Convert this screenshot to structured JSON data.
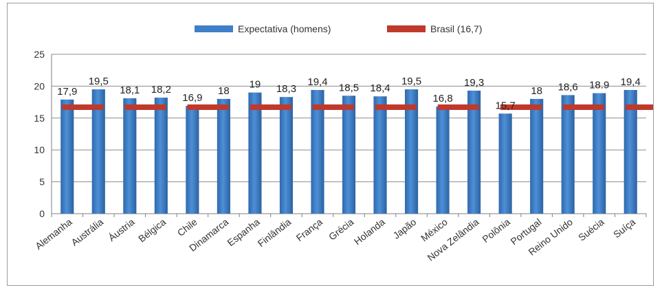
{
  "chart_data": {
    "type": "bar",
    "categories": [
      "Alemanha",
      "Austrália",
      "Áustria",
      "Bélgica",
      "Chile",
      "Dinamarca",
      "Espanha",
      "Finlândia",
      "França",
      "Grécia",
      "Holanda",
      "Japão",
      "México",
      "Nova Zelândia",
      "Polônia",
      "Portugal",
      "Reino Unido",
      "Suécia",
      "Suíça"
    ],
    "series": [
      {
        "name": "Expectativa (homens)",
        "values": [
          17.9,
          19.5,
          18.1,
          18.2,
          16.9,
          18,
          19,
          18.3,
          19.4,
          18.5,
          18.4,
          19.5,
          16.8,
          19.3,
          15.7,
          18,
          18.6,
          18.9,
          19.4
        ],
        "color": "#3f7fc8"
      },
      {
        "name": "Brasil (16,7)",
        "values": [
          16.7,
          16.7,
          16.7,
          16.7,
          16.7,
          16.7,
          16.7,
          16.7,
          16.7,
          16.7,
          16.7,
          16.7,
          16.7,
          16.7,
          16.7,
          16.7,
          16.7,
          16.7,
          16.7
        ],
        "color": "#c0392b"
      }
    ],
    "data_labels": [
      "17,9",
      "19,5",
      "18,1",
      "18,2",
      "16,9",
      "18",
      "19",
      "18,3",
      "19,4",
      "18,5",
      "18,4",
      "19,5",
      "16,8",
      "19,3",
      "15,7",
      "18",
      "18,6",
      "18.9",
      "19,4"
    ],
    "yticks": [
      "0",
      "5",
      "10",
      "15",
      "20",
      "25"
    ],
    "ylim": [
      0,
      25
    ],
    "grid": true,
    "legend_position": "top"
  }
}
